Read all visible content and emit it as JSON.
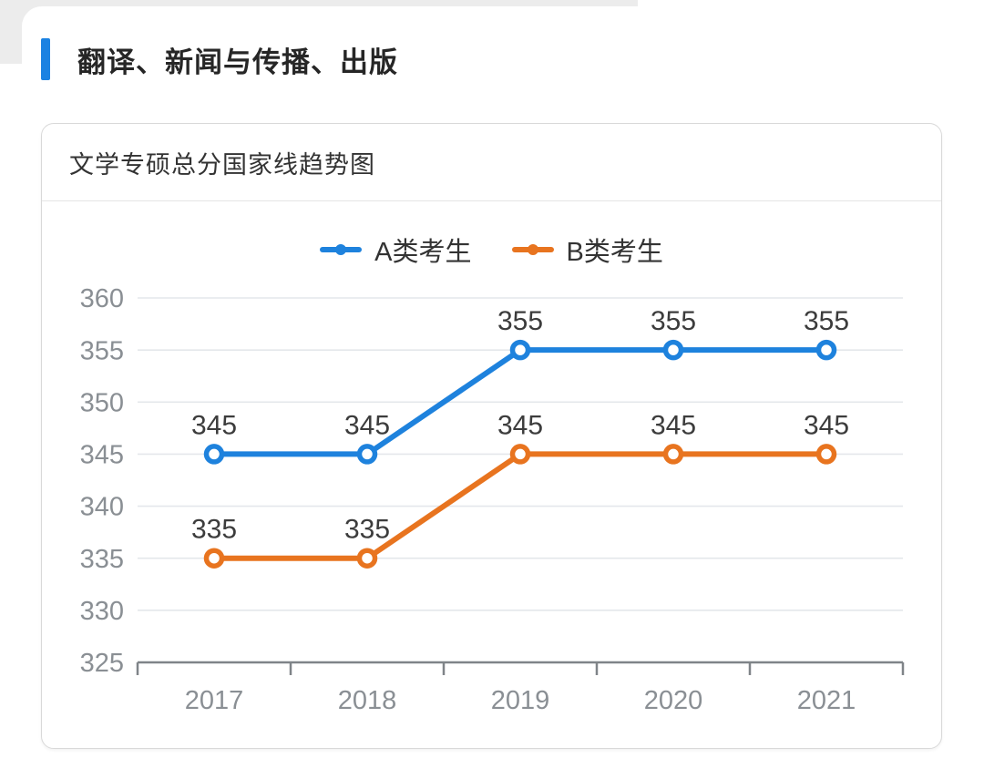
{
  "page": {
    "section_title": "翻译、新闻与传播、出版",
    "accent_color": "#1b82e2"
  },
  "card": {
    "title": "文学专硕总分国家线趋势图"
  },
  "chart_data": {
    "type": "line",
    "title": "文学专硕总分国家线趋势图",
    "categories": [
      "2017",
      "2018",
      "2019",
      "2020",
      "2021"
    ],
    "series": [
      {
        "name": "A类考生",
        "color": "#1e82dd",
        "values": [
          345,
          345,
          355,
          355,
          355
        ]
      },
      {
        "name": "B类考生",
        "color": "#e8741f",
        "values": [
          335,
          335,
          345,
          345,
          345
        ]
      }
    ],
    "xlabel": "",
    "ylabel": "",
    "ylim": [
      325,
      360
    ],
    "yticks": [
      325,
      330,
      335,
      340,
      345,
      350,
      355,
      360
    ],
    "grid": true,
    "legend_position": "top",
    "data_labels": true,
    "colors": {
      "grid_line": "#e4e7eb",
      "axis_line": "#7f8488",
      "tick_label": "#8a8f94",
      "data_label": "#3c3c3c"
    }
  }
}
